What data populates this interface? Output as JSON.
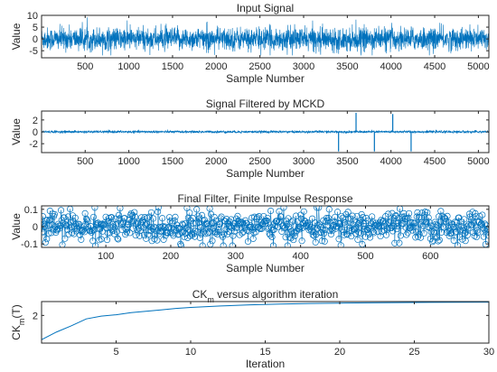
{
  "chart_data": [
    {
      "type": "line",
      "title": "Input Signal",
      "xlabel": "Sample Number",
      "ylabel": "Value",
      "xlim": [
        1,
        5120
      ],
      "ylim": [
        -8,
        10
      ],
      "xticks": [
        500,
        1000,
        1500,
        2000,
        2500,
        3000,
        3500,
        4000,
        4500,
        5000
      ],
      "yticks": [
        -5,
        0,
        5,
        10
      ],
      "series": [
        {
          "color": "#0072BD",
          "n": 5120,
          "amplitude_typical": 4.5,
          "range": [
            -7,
            10
          ],
          "description": "broadband noise signal"
        }
      ]
    },
    {
      "type": "line",
      "title": "Signal Filtered by MCKD",
      "xlabel": "Sample Number",
      "ylabel": "Value",
      "xlim": [
        1,
        5120
      ],
      "ylim": [
        -3.5,
        3.5
      ],
      "xticks": [
        500,
        1000,
        1500,
        2000,
        2500,
        3000,
        3500,
        4000,
        4500,
        5000
      ],
      "yticks": [
        -2,
        0,
        2
      ],
      "series": [
        {
          "color": "#0072BD",
          "n": 5120,
          "baseline_amplitude": 0.3,
          "spikes": [
            {
              "x": 3400,
              "y": -3.3
            },
            {
              "x": 3600,
              "y": 3.2
            },
            {
              "x": 3810,
              "y": -3.3
            },
            {
              "x": 4020,
              "y": 3.0
            },
            {
              "x": 4230,
              "y": -3.3
            }
          ]
        }
      ]
    },
    {
      "type": "scatter",
      "title": "Final Filter, Finite Impulse Response",
      "xlabel": "Sample Number",
      "ylabel": "Value",
      "xlim": [
        1,
        690
      ],
      "ylim": [
        -0.12,
        0.12
      ],
      "xticks": [
        100,
        200,
        300,
        400,
        500,
        600
      ],
      "yticks": [
        -0.1,
        0,
        0.1
      ],
      "series": [
        {
          "color": "#0072BD",
          "n": 690,
          "marker": "circle",
          "stem_line": true,
          "amplitude_typical": 0.07
        }
      ]
    },
    {
      "type": "line",
      "title": "CK_m versus algorithm iteration",
      "xlabel": "Iteration",
      "ylabel": "CK_m(T)",
      "xlim": [
        0,
        30
      ],
      "ylim": [
        0,
        3
      ],
      "xticks": [
        5,
        10,
        15,
        20,
        25,
        30
      ],
      "yticks": [
        2
      ],
      "series": [
        {
          "color": "#0072BD",
          "x": [
            0,
            1,
            2,
            3,
            4,
            5,
            6,
            7,
            8,
            9,
            10,
            12,
            14,
            16,
            18,
            20,
            22,
            24,
            26,
            28,
            30
          ],
          "y": [
            0.25,
            0.8,
            1.25,
            1.75,
            1.95,
            2.05,
            2.2,
            2.3,
            2.4,
            2.5,
            2.58,
            2.68,
            2.76,
            2.82,
            2.86,
            2.89,
            2.91,
            2.93,
            2.94,
            2.95,
            2.96
          ]
        }
      ]
    }
  ]
}
